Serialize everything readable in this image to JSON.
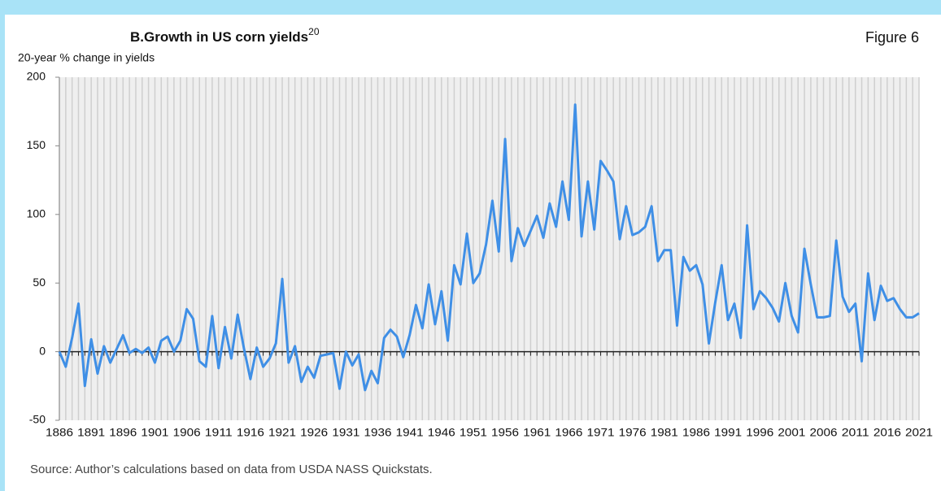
{
  "chart_data": {
    "type": "line",
    "title": "B.Growth in US corn yields",
    "title_superscript": "20",
    "figure_label": "Figure 6",
    "y_axis_label": "20-year % change in yields",
    "source": "Source: Author’s calculations based on data from USDA NASS Quickstats.",
    "x": [
      1886,
      1887,
      1888,
      1889,
      1890,
      1891,
      1892,
      1893,
      1894,
      1895,
      1896,
      1897,
      1898,
      1899,
      1900,
      1901,
      1902,
      1903,
      1904,
      1905,
      1906,
      1907,
      1908,
      1909,
      1910,
      1911,
      1912,
      1913,
      1914,
      1915,
      1916,
      1917,
      1918,
      1919,
      1920,
      1921,
      1922,
      1923,
      1924,
      1925,
      1926,
      1927,
      1928,
      1929,
      1930,
      1931,
      1932,
      1933,
      1934,
      1935,
      1936,
      1937,
      1938,
      1939,
      1940,
      1941,
      1942,
      1943,
      1944,
      1945,
      1946,
      1947,
      1948,
      1949,
      1950,
      1951,
      1952,
      1953,
      1954,
      1955,
      1956,
      1957,
      1958,
      1959,
      1960,
      1961,
      1962,
      1963,
      1964,
      1965,
      1966,
      1967,
      1968,
      1969,
      1970,
      1971,
      1972,
      1973,
      1974,
      1975,
      1976,
      1977,
      1978,
      1979,
      1980,
      1981,
      1982,
      1983,
      1984,
      1985,
      1986,
      1987,
      1988,
      1989,
      1990,
      1991,
      1992,
      1993,
      1994,
      1995,
      1996,
      1997,
      1998,
      1999,
      2000,
      2001,
      2002,
      2003,
      2004,
      2005,
      2006,
      2007,
      2008,
      2009,
      2010,
      2011,
      2012,
      2013,
      2014,
      2015,
      2016,
      2017,
      2018,
      2019,
      2020,
      2021
    ],
    "series": [
      {
        "name": "20-year % change in yields",
        "color": "#3f8fe6",
        "values": [
          0,
          -11,
          10,
          35,
          -25,
          9,
          -16,
          4,
          -8,
          2,
          12,
          -1,
          2,
          -1,
          3,
          -8,
          8,
          11,
          0,
          8,
          31,
          24,
          -7,
          -11,
          26,
          -12,
          18,
          -5,
          27,
          2,
          -20,
          3,
          -11,
          -5,
          6,
          53,
          -8,
          4,
          -22,
          -11,
          -19,
          -3,
          -2,
          -1,
          -27,
          0,
          -10,
          -2,
          -28,
          -14,
          -23,
          10,
          16,
          11,
          -4,
          12,
          34,
          17,
          49,
          20,
          44,
          8,
          63,
          49,
          86,
          50,
          57,
          78,
          110,
          73,
          155,
          66,
          90,
          77,
          88,
          99,
          83,
          108,
          91,
          124,
          96,
          180,
          84,
          124,
          89,
          139,
          132,
          124,
          82,
          106,
          85,
          87,
          91,
          106,
          66,
          74,
          74,
          19,
          69,
          59,
          63,
          49,
          6,
          36,
          63,
          23,
          35,
          10,
          92,
          31,
          44,
          39,
          32,
          22,
          50,
          26,
          14,
          75,
          49,
          25,
          25,
          26,
          81,
          40,
          29,
          35,
          -7,
          57,
          23,
          48,
          37,
          39,
          31,
          25,
          25,
          28
        ]
      }
    ],
    "xlim": [
      1886,
      2021
    ],
    "xticks": [
      1886,
      1891,
      1896,
      1901,
      1906,
      1911,
      1916,
      1921,
      1926,
      1931,
      1936,
      1941,
      1946,
      1951,
      1956,
      1961,
      1966,
      1971,
      1976,
      1981,
      1986,
      1991,
      1996,
      2001,
      2006,
      2011,
      2016,
      2021
    ],
    "ylim": [
      -50,
      200
    ],
    "yticks": [
      -50,
      0,
      50,
      100,
      150,
      200
    ],
    "grid": true
  }
}
